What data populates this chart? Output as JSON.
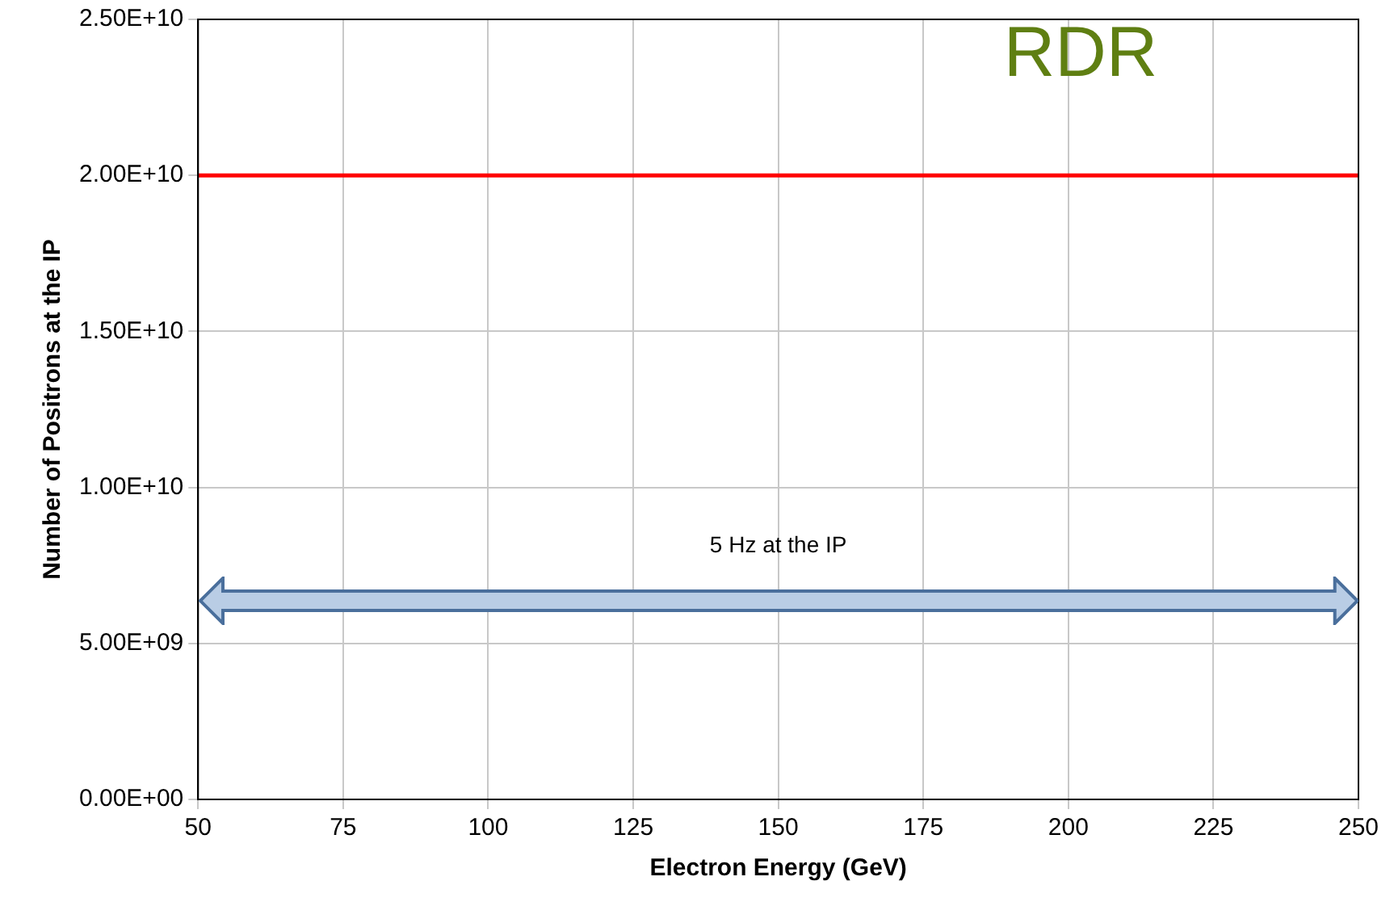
{
  "chart_data": {
    "type": "line",
    "xlabel": "Electron Energy (GeV)",
    "ylabel": "Number of Positrons at the IP",
    "x": [
      50,
      250
    ],
    "series": [
      {
        "color": "#ff0000",
        "values": [
          20000000000,
          20000000000
        ]
      }
    ],
    "xlim": [
      50,
      250
    ],
    "xticks": [
      50,
      75,
      100,
      125,
      150,
      175,
      200,
      225,
      250
    ],
    "ylim": [
      0,
      25000000000
    ],
    "yticks": [
      {
        "value": 0,
        "label": "0.00E+00"
      },
      {
        "value": 5000000000,
        "label": "5.00E+09"
      },
      {
        "value": 10000000000,
        "label": "1.00E+10"
      },
      {
        "value": 15000000000,
        "label": "1.50E+10"
      },
      {
        "value": 20000000000,
        "label": "2.00E+10"
      },
      {
        "value": 25000000000,
        "label": "2.50E+10"
      }
    ],
    "grid": true,
    "legend": false,
    "marker": "none",
    "line_style": "solid",
    "annotations": [
      "RDR",
      "5 Hz at the IP"
    ]
  }
}
